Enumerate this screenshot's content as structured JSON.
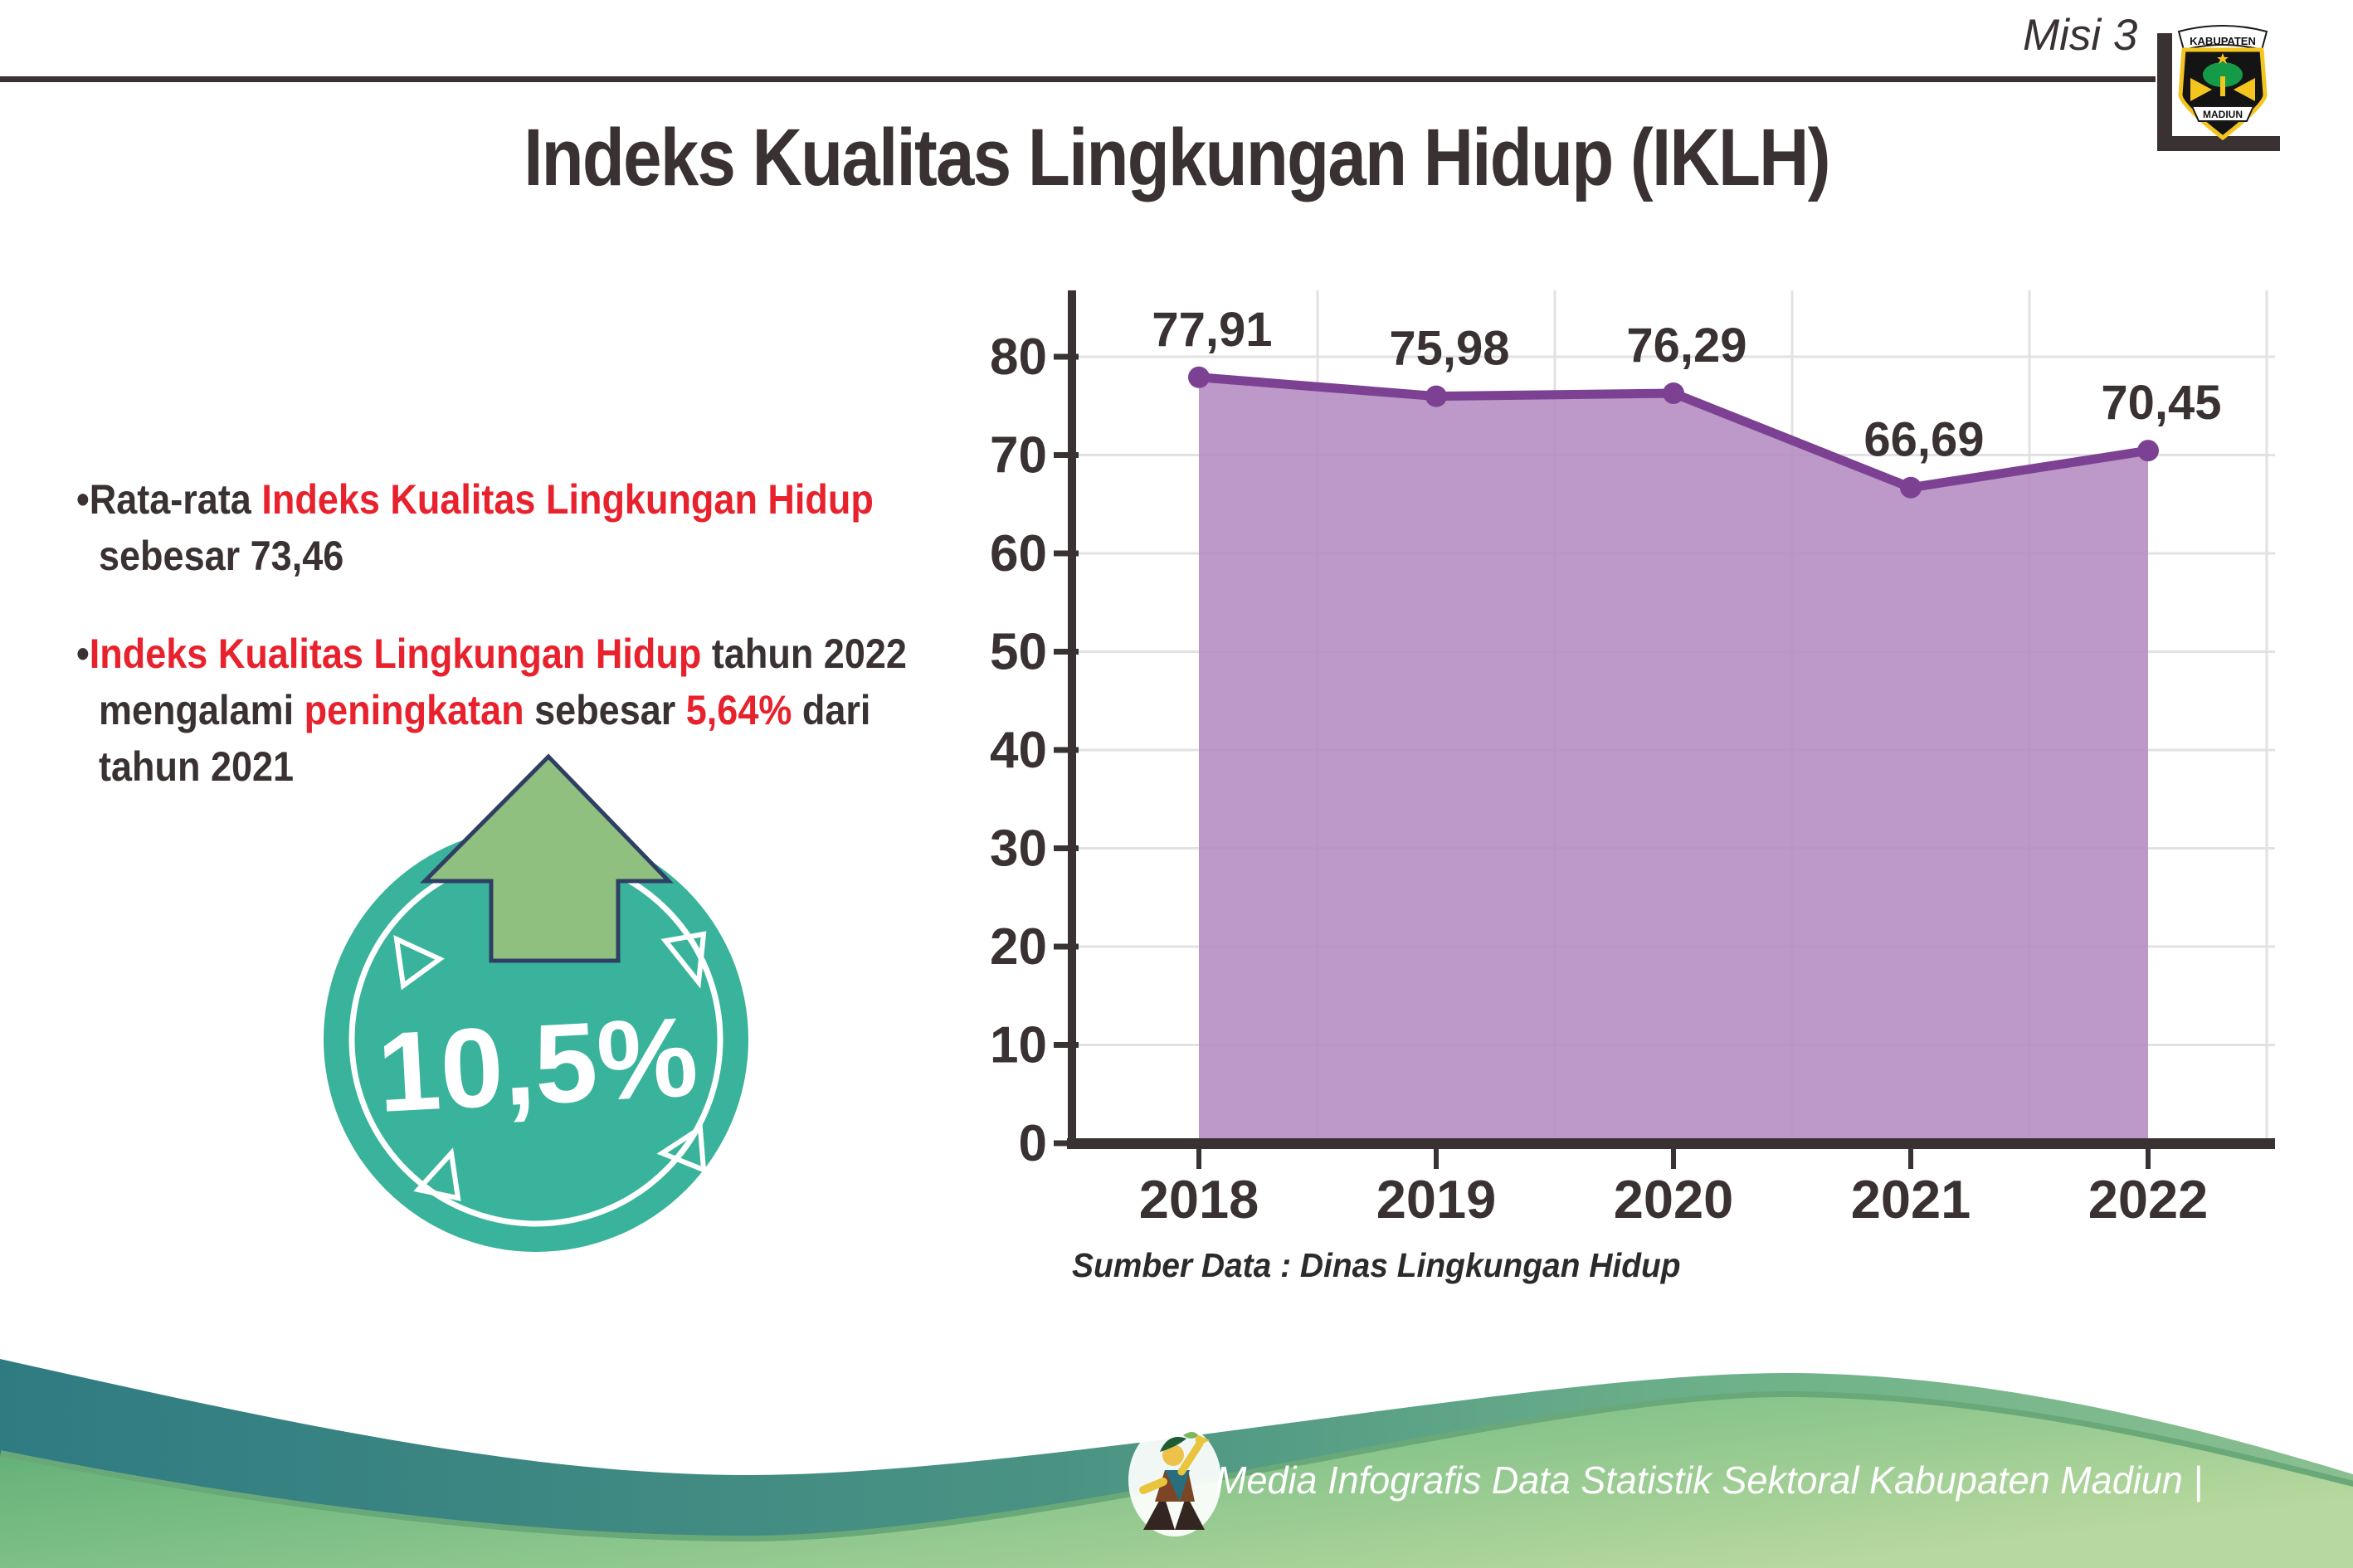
{
  "header": {
    "tag": "Misi 3",
    "logo": {
      "top": "KABUPATEN",
      "bottom": "MADIUN"
    }
  },
  "title": "Indeks Kualitas Lingkungan Hidup (IKLH)",
  "bullets": [
    {
      "lines": [
        [
          {
            "t": "•Rata-rata ",
            "c": "dark"
          },
          {
            "t": "Indeks Kualitas Lingkungan Hidup",
            "c": "red"
          }
        ],
        [
          {
            "t": "sebesar 73,46",
            "c": "dark"
          }
        ]
      ]
    },
    {
      "lines": [
        [
          {
            "t": "•",
            "c": "dark"
          },
          {
            "t": "Indeks Kualitas Lingkungan Hidup",
            "c": "red"
          },
          {
            "t": " tahun 2022",
            "c": "dark"
          }
        ],
        [
          {
            "t": "mengalami ",
            "c": "dark"
          },
          {
            "t": "peningkatan",
            "c": "red"
          },
          {
            "t": " sebesar ",
            "c": "dark"
          },
          {
            "t": "5,64%",
            "c": "red"
          },
          {
            "t": " dari",
            "c": "dark"
          }
        ],
        [
          {
            "t": "tahun 2021",
            "c": "dark"
          }
        ]
      ]
    }
  ],
  "badge": {
    "value": "10,5%",
    "direction": "up"
  },
  "chart_data": {
    "type": "area",
    "categories": [
      "2018",
      "2019",
      "2020",
      "2021",
      "2022"
    ],
    "values": [
      77.91,
      75.98,
      76.29,
      66.69,
      70.45
    ],
    "value_labels": [
      "77,91",
      "75,98",
      "76,29",
      "66,69",
      "70,45"
    ],
    "title": "",
    "xlabel": "",
    "ylabel": "",
    "ylim": [
      0,
      80
    ],
    "ytick_step": 10,
    "grid": true,
    "legend": false,
    "fill_color": "#b58ec2",
    "line_color": "#7d4193",
    "source_note": "Sumber Data : Dinas Lingkungan Hidup"
  },
  "footer": {
    "credit": "Media Infografis Data Statistik Sektoral Kabupaten Madiun |"
  }
}
